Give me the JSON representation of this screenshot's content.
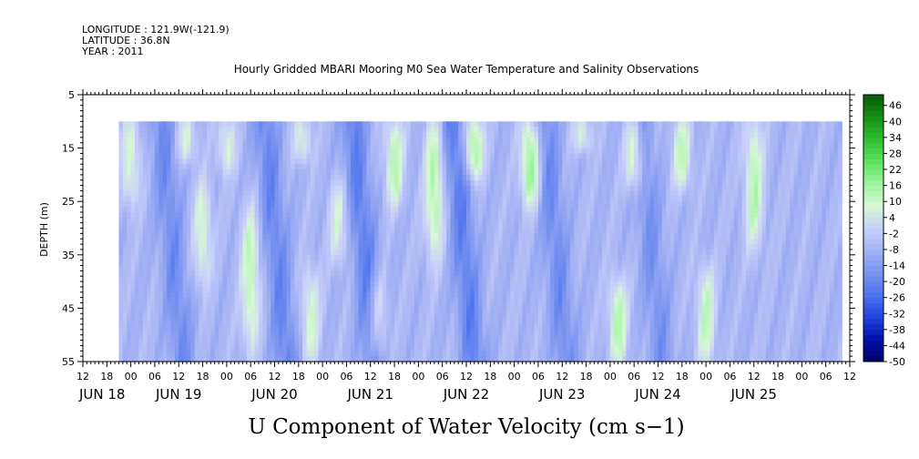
{
  "header": {
    "longitude": "LONGITUDE : 121.9W(-121.9)",
    "latitude": "LATITUDE : 36.8N",
    "year": "YEAR : 2011"
  },
  "chart_data": {
    "type": "heatmap",
    "title": "Hourly Gridded MBARI Mooring M0 Sea Water Temperature and Salinity Observations",
    "variable_label": "U Component of Water Velocity (cm s−1)",
    "ylabel": "DEPTH (m)",
    "y_reversed": true,
    "ylim": [
      5,
      55
    ],
    "yticks": [
      5,
      15,
      25,
      35,
      45,
      55
    ],
    "data_depth_range": [
      10,
      55
    ],
    "x_hour_range": [
      -12,
      180
    ],
    "data_hour_range": [
      -3,
      178
    ],
    "x_hour_ticks": [
      "12",
      "18",
      "00",
      "06",
      "12",
      "18",
      "00",
      "06",
      "12",
      "18",
      "00",
      "06",
      "12",
      "18",
      "00",
      "06",
      "12",
      "18",
      "00",
      "06",
      "12",
      "18",
      "00",
      "06",
      "12",
      "18",
      "00",
      "06",
      "12",
      "18",
      "00",
      "06",
      "12"
    ],
    "x_day_labels": [
      {
        "label": "JUN 18",
        "hour": -12
      },
      {
        "label": "JUN 19",
        "hour": 12
      },
      {
        "label": "JUN 20",
        "hour": 36
      },
      {
        "label": "JUN 21",
        "hour": 60
      },
      {
        "label": "JUN 22",
        "hour": 84
      },
      {
        "label": "JUN 23",
        "hour": 108
      },
      {
        "label": "JUN 24",
        "hour": 132
      },
      {
        "label": "JUN 25",
        "hour": 156
      }
    ],
    "colorbar": {
      "min": -50,
      "max": 50,
      "step": 2,
      "tick_labels": [
        "46",
        "40",
        "34",
        "28",
        "22",
        "16",
        "10",
        "4",
        "-2",
        "-8",
        "-14",
        "-20",
        "-26",
        "-32",
        "-38",
        "-44",
        "-50"
      ],
      "colors_low_to_high": [
        "#000066",
        "#0010aa",
        "#2244dd",
        "#4e72ee",
        "#7a93f0",
        "#a3b2f4",
        "#c8d0fa",
        "#d6f7d6",
        "#9ef59e",
        "#5fe05f",
        "#2fbf2f",
        "#158f15",
        "#0a5a0a"
      ]
    },
    "approx_pattern": {
      "note_hours": "hour 0 = 00 Jun 18",
      "green_events": [
        {
          "hour": 0,
          "depth_top": 10,
          "depth_bottom": 25,
          "value": 6
        },
        {
          "hour": 14,
          "depth_top": 10,
          "depth_bottom": 17,
          "value": 4
        },
        {
          "hour": 18,
          "depth_top": 22,
          "depth_bottom": 40,
          "value": 6
        },
        {
          "hour": 24,
          "depth_top": 10,
          "depth_bottom": 19,
          "value": 4
        },
        {
          "hour": 30,
          "depth_top": 27,
          "depth_bottom": 52,
          "value": 10
        },
        {
          "hour": 43,
          "depth_top": 10,
          "depth_bottom": 17,
          "value": 4
        },
        {
          "hour": 45,
          "depth_top": 38,
          "depth_bottom": 55,
          "value": 6
        },
        {
          "hour": 52,
          "depth_top": 22,
          "depth_bottom": 36,
          "value": 4
        },
        {
          "hour": 62,
          "depth_top": 40,
          "depth_bottom": 55,
          "value": 6
        },
        {
          "hour": 66,
          "depth_top": 10,
          "depth_bottom": 25,
          "value": 10
        },
        {
          "hour": 76,
          "depth_top": 10,
          "depth_bottom": 35,
          "value": 12
        },
        {
          "hour": 86,
          "depth_top": 10,
          "depth_bottom": 20,
          "value": 14
        },
        {
          "hour": 100,
          "depth_top": 10,
          "depth_bottom": 25,
          "value": 16
        },
        {
          "hour": 113,
          "depth_top": 10,
          "depth_bottom": 15,
          "value": 4
        },
        {
          "hour": 122,
          "depth_top": 40,
          "depth_bottom": 55,
          "value": 10
        },
        {
          "hour": 126,
          "depth_top": 10,
          "depth_bottom": 22,
          "value": 10
        },
        {
          "hour": 138,
          "depth_top": 10,
          "depth_bottom": 22,
          "value": 8
        },
        {
          "hour": 144,
          "depth_top": 38,
          "depth_bottom": 55,
          "value": 8
        },
        {
          "hour": 156,
          "depth_top": 10,
          "depth_bottom": 33,
          "value": 10
        }
      ],
      "blue_events": [
        {
          "hour": 10,
          "depth_top": 10,
          "depth_bottom": 55,
          "value": -14
        },
        {
          "hour": 36,
          "depth_top": 10,
          "depth_bottom": 55,
          "value": -16
        },
        {
          "hour": 58,
          "depth_top": 10,
          "depth_bottom": 55,
          "value": -18
        },
        {
          "hour": 83,
          "depth_top": 10,
          "depth_bottom": 55,
          "value": -18
        },
        {
          "hour": 106,
          "depth_top": 10,
          "depth_bottom": 55,
          "value": -14
        },
        {
          "hour": 130,
          "depth_top": 10,
          "depth_bottom": 55,
          "value": -12
        }
      ]
    }
  }
}
